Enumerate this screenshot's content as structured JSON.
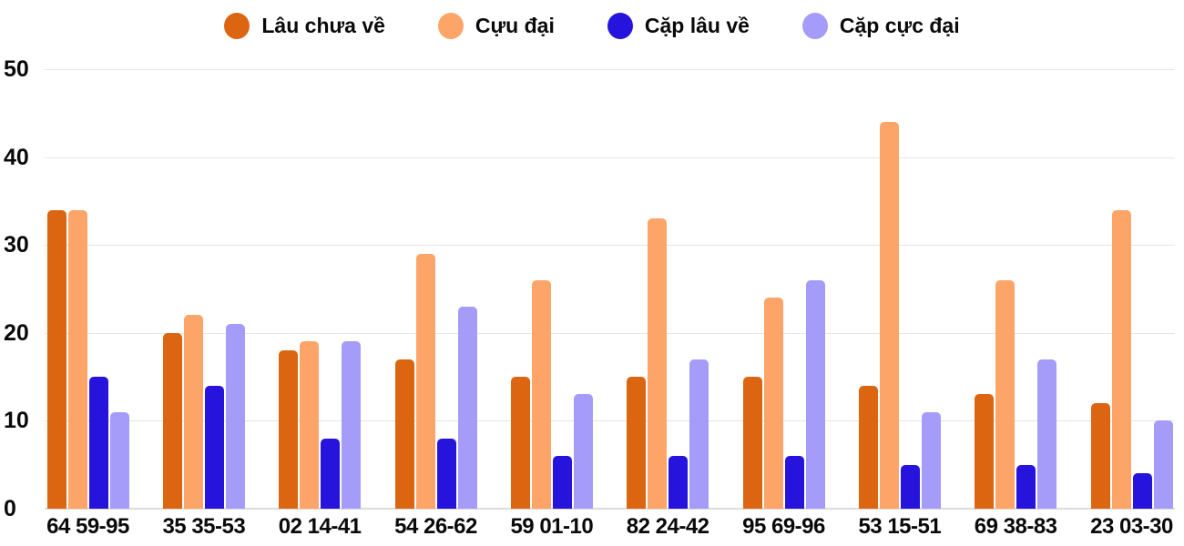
{
  "chart_data": {
    "type": "bar",
    "title": "",
    "categories": [
      "64 59-95",
      "35 35-53",
      "02 14-41",
      "54 26-62",
      "59 01-10",
      "82 24-42",
      "95 69-96",
      "53 15-51",
      "69 38-83",
      "23 03-30"
    ],
    "series": [
      {
        "name": "Lâu chưa về",
        "color": "#DC6511",
        "values": [
          34,
          20,
          18,
          17,
          15,
          15,
          15,
          14,
          13,
          12
        ]
      },
      {
        "name": "Cựu đại",
        "color": "#FDA468",
        "values": [
          34,
          22,
          19,
          29,
          26,
          33,
          24,
          44,
          26,
          34
        ]
      },
      {
        "name": "Cặp lâu về",
        "color": "#2614DC",
        "values": [
          15,
          14,
          8,
          8,
          6,
          6,
          6,
          5,
          5,
          4
        ]
      },
      {
        "name": "Cặp cực đại",
        "color": "#A49CF8",
        "values": [
          11,
          21,
          19,
          23,
          13,
          17,
          26,
          11,
          17,
          10
        ]
      }
    ],
    "yticks": [
      0,
      10,
      20,
      30,
      40,
      50
    ],
    "ylim": [
      0,
      50
    ],
    "grid": true,
    "legend_position": "top",
    "xlabel": "",
    "ylabel": ""
  },
  "colors": {
    "background": "#FFFFFF",
    "gridline": "#E6E6E6",
    "baseline": "#DCDCDC",
    "text": "#0A0A0A"
  }
}
